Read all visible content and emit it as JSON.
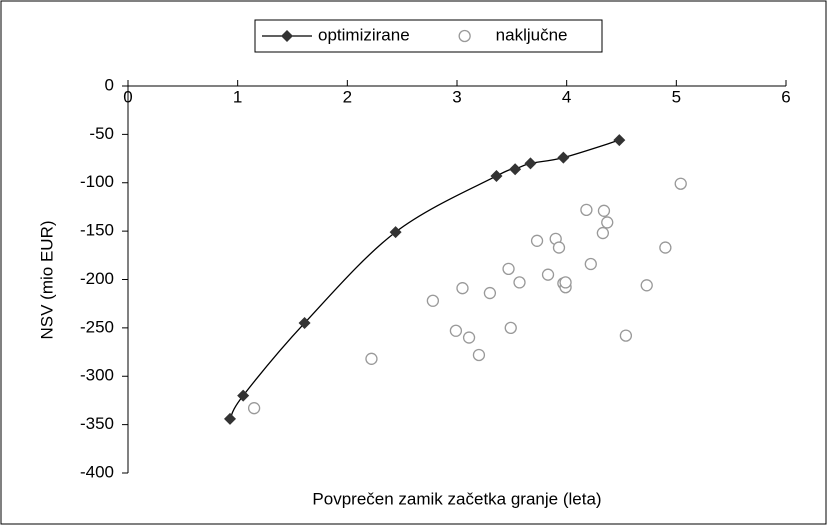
{
  "chart_data": {
    "type": "scatter",
    "xlabel": "Povprečen zamik začetka granje (leta)",
    "ylabel": "NSV (mio EUR)",
    "xlim": [
      0,
      6
    ],
    "xticks": [
      0,
      1,
      2,
      3,
      4,
      5,
      6
    ],
    "ylim": [
      -400,
      0
    ],
    "yticks": [
      0,
      -50,
      -100,
      -150,
      -200,
      -250,
      -300,
      -350,
      -400
    ],
    "grid": false,
    "legend": "top",
    "series": [
      {
        "name": "optimizirane",
        "color": "#333333",
        "marker": "diamond",
        "line": true,
        "x": [
          0.93,
          1.05,
          1.61,
          2.44,
          3.36,
          3.53,
          3.67,
          3.97,
          4.48
        ],
        "values": [
          -344,
          -320,
          -245,
          -151,
          -93,
          -86,
          -80,
          -74,
          -56
        ]
      },
      {
        "name": "naključne",
        "color": "#999999",
        "marker": "circle",
        "line": false,
        "x": [
          1.15,
          2.22,
          2.78,
          2.99,
          3.05,
          3.11,
          3.2,
          3.3,
          3.47,
          3.49,
          3.57,
          3.73,
          3.83,
          3.9,
          3.93,
          3.97,
          3.99,
          3.99,
          4.18,
          4.22,
          4.33,
          4.34,
          4.37,
          4.54,
          4.9,
          4.73,
          5.04
        ],
        "values": [
          -333,
          -282,
          -222,
          -253,
          -209,
          -260,
          -278,
          -214,
          -189,
          -250,
          -203,
          -160,
          -195,
          -158,
          -167,
          -204,
          -208,
          -203,
          -128,
          -184,
          -152,
          -129,
          -141,
          -258,
          -167,
          -206,
          -101
        ]
      }
    ]
  }
}
